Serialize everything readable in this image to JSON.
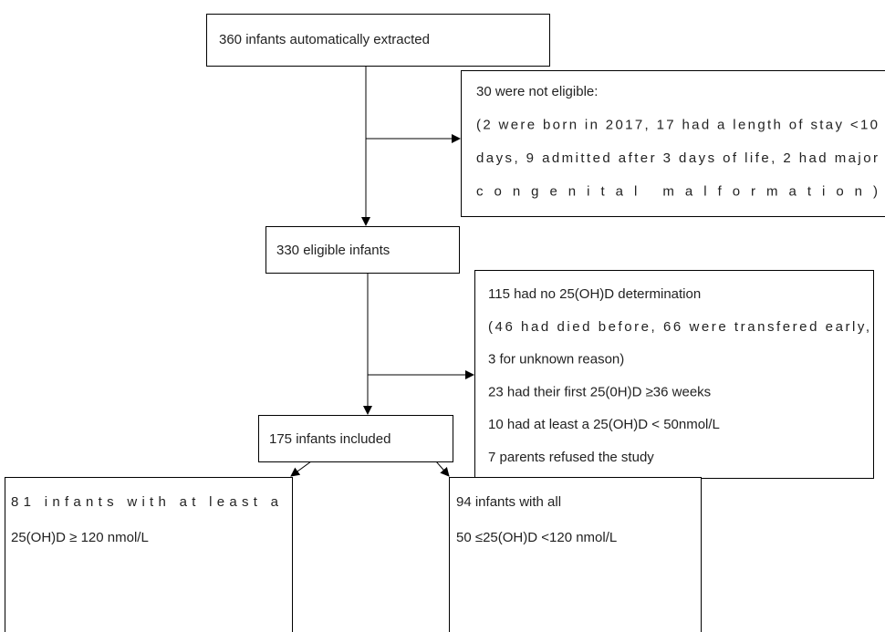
{
  "nodes": [
    {
      "lines": [
        "360 infants automatically extracted"
      ]
    },
    {
      "lines": [
        "30 were not eligible:",
        "(2 were born in 2017, 17 had a length of stay <10",
        "days, 9 admitted after 3 days of life, 2 had major",
        "congenital malformation)"
      ]
    },
    {
      "lines": [
        "330 eligible infants"
      ]
    },
    {
      "lines": [
        "115 had no 25(OH)D determination",
        "(46 had died before, 66 were transfered early,",
        "3 for unknown reason)",
        "23 had their first 25(0H)D ≥36 weeks",
        "10 had at least a 25(OH)D < 50nmol/L",
        "7 parents refused the study"
      ]
    },
    {
      "lines": [
        "175 infants included"
      ]
    },
    {
      "lines": [
        "81 infants with at least a",
        "25(OH)D ≥ 120 nmol/L"
      ]
    },
    {
      "lines": [
        "94 infants with all",
        "50 ≤25(OH)D <120 nmol/L"
      ]
    }
  ]
}
